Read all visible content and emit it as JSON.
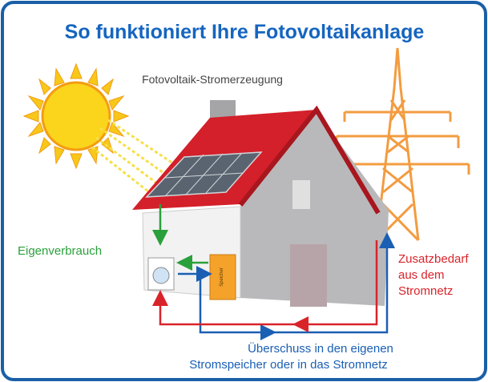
{
  "title": "So funktioniert Ihre Fotovoltaikanlage",
  "labels": {
    "generation": "Fotovoltaik-Stromerzeugung",
    "self_consumption": "Eigenverbrauch",
    "storage": "Speicher",
    "additional_demand": [
      "Zusatzbedarf",
      "aus dem",
      "Stromnetz"
    ],
    "surplus": [
      "Überschuss in den eigenen",
      "Stromspeicher oder in das Stromnetz"
    ]
  }
}
